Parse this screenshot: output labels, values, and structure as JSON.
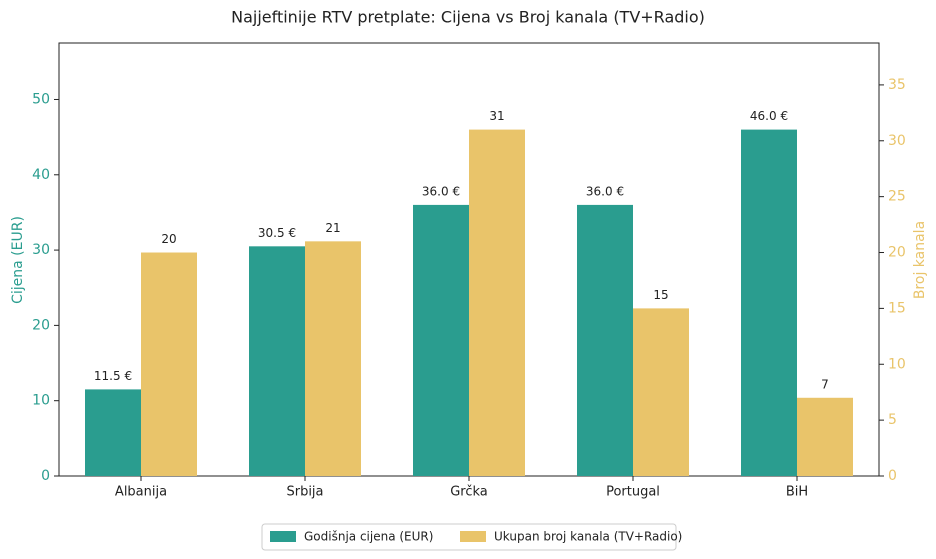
{
  "chart_data": {
    "type": "bar",
    "title": "Najjeftinije RTV pretplate: Cijena vs Broj kanala (TV+Radio)",
    "categories": [
      "Albanija",
      "Srbija",
      "Grčka",
      "Portugal",
      "BiH"
    ],
    "ylabel": "Cijena (EUR)",
    "y2label": "Broj kanala",
    "ylim": [
      0,
      57.5
    ],
    "yticks": [
      0,
      10,
      20,
      30,
      40,
      50
    ],
    "y2lim": [
      0,
      38.75
    ],
    "y2ticks": [
      0,
      5,
      10,
      15,
      20,
      25,
      30,
      35
    ],
    "series": [
      {
        "name": "Godišnja cijena (EUR)",
        "color": "#2a9d8f",
        "values": [
          11.5,
          30.5,
          36.0,
          36.0,
          46.0
        ],
        "value_labels": [
          "11.5 €",
          "30.5 €",
          "36.0 €",
          "36.0 €",
          "46.0 €"
        ]
      },
      {
        "name": "Ukupan broj kanala (TV+Radio)",
        "color": "#e9c46a",
        "axis": "y2",
        "values": [
          20,
          21,
          31,
          15,
          7
        ]
      }
    ]
  }
}
